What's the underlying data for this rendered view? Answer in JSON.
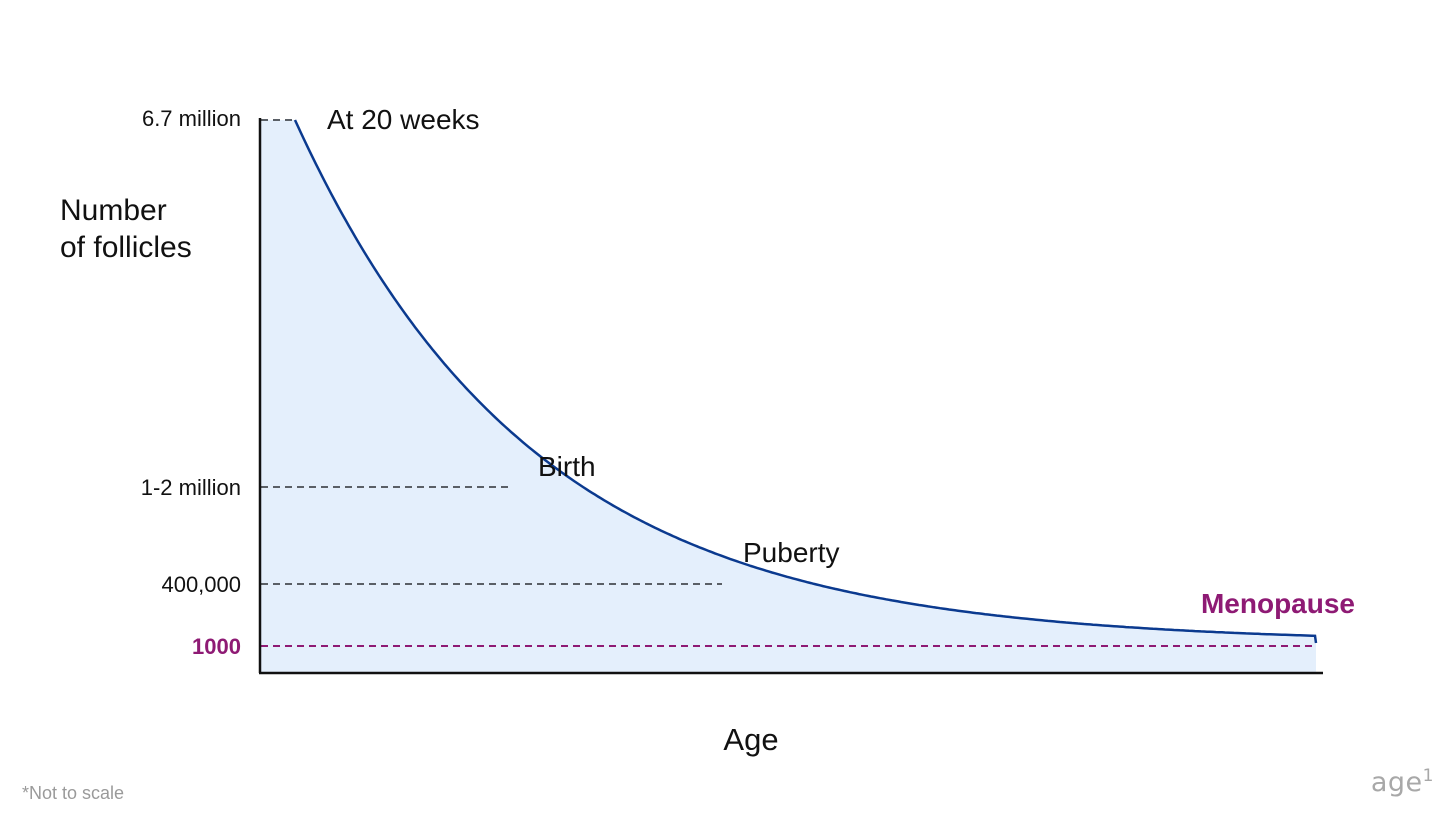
{
  "chart_data": {
    "type": "area",
    "y_axis_label_lines": [
      "Number",
      "of follicles"
    ],
    "x_axis_label": "Age",
    "y_ticks": [
      {
        "label": "6.7 million",
        "value": 6700000,
        "highlight": false
      },
      {
        "label": "1-2 million",
        "value": 1500000,
        "highlight": false
      },
      {
        "label": "400,000",
        "value": 400000,
        "highlight": false
      },
      {
        "label": "1000",
        "value": 1000,
        "highlight": true
      }
    ],
    "annotations": [
      {
        "label": "At 20 weeks",
        "highlight": false
      },
      {
        "label": "Birth",
        "highlight": false
      },
      {
        "label": "Puberty",
        "highlight": false
      },
      {
        "label": "Menopause",
        "highlight": true
      }
    ],
    "footnote": "*Not to scale",
    "logo_text": "age",
    "logo_superscript": "1",
    "colors": {
      "curve": "#0b3a8f",
      "fill": "#e4effc",
      "axis": "#111111",
      "guide": "#5a5f66",
      "highlight": "#8e1a74"
    }
  }
}
